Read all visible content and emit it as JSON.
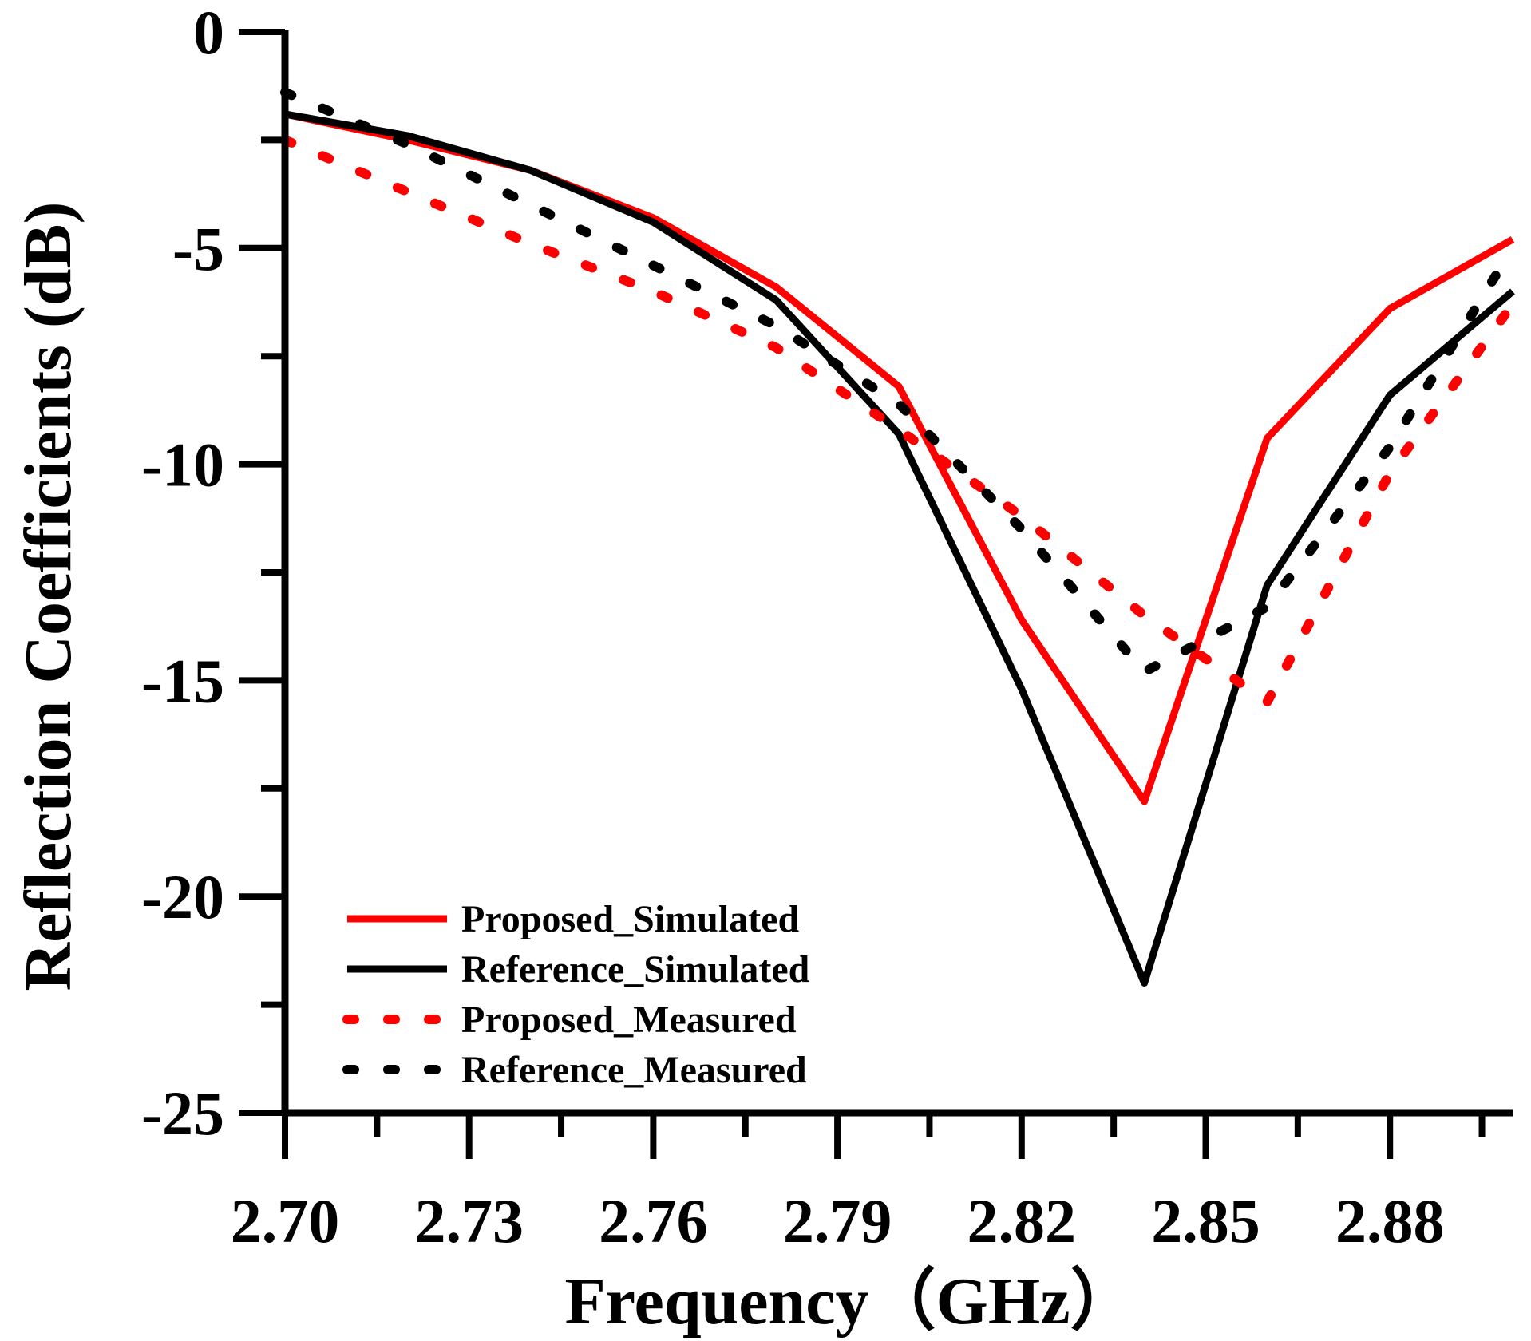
{
  "chart_data": {
    "type": "line",
    "xlabel": "Frequency（GHz）",
    "ylabel": "Reflection Coefficients (dB)",
    "xlim": [
      2.7,
      2.9
    ],
    "ylim": [
      -25,
      0
    ],
    "xticks": [
      2.7,
      2.73,
      2.76,
      2.79,
      2.82,
      2.85,
      2.88
    ],
    "xtick_labels": [
      "2.70",
      "2.73",
      "2.76",
      "2.79",
      "2.82",
      "2.85",
      "2.88"
    ],
    "yticks": [
      0,
      -5,
      -10,
      -15,
      -20,
      -25
    ],
    "ytick_labels": [
      "0",
      "-5",
      "-10",
      "-15",
      "-20",
      "-25"
    ],
    "grid": false,
    "legend_position": "bottom-left",
    "series": [
      {
        "name": "Proposed_Simulated",
        "color": "#ff0000",
        "style": "solid",
        "x": [
          2.7,
          2.72,
          2.74,
          2.76,
          2.78,
          2.8,
          2.82,
          2.84,
          2.86,
          2.88,
          2.9
        ],
        "y": [
          -1.9,
          -2.5,
          -3.2,
          -4.3,
          -5.9,
          -8.2,
          -13.6,
          -17.8,
          -9.4,
          -6.4,
          -4.8
        ]
      },
      {
        "name": "Reference_Simulated",
        "color": "#000000",
        "style": "solid",
        "x": [
          2.7,
          2.72,
          2.74,
          2.76,
          2.78,
          2.8,
          2.82,
          2.84,
          2.86,
          2.88,
          2.9
        ],
        "y": [
          -1.9,
          -2.4,
          -3.2,
          -4.4,
          -6.2,
          -9.3,
          -15.2,
          -22.0,
          -12.8,
          -8.4,
          -6.0
        ]
      },
      {
        "name": "Proposed_Measured",
        "color": "#ff0000",
        "style": "dotted",
        "x": [
          2.7,
          2.72,
          2.74,
          2.76,
          2.78,
          2.8,
          2.82,
          2.84,
          2.86,
          2.88,
          2.9
        ],
        "y": [
          -2.5,
          -3.7,
          -4.9,
          -6.0,
          -7.3,
          -9.2,
          -11.2,
          -13.5,
          -15.5,
          -10.2,
          -6.3
        ]
      },
      {
        "name": "Reference_Measured",
        "color": "#000000",
        "style": "dotted",
        "x": [
          2.7,
          2.72,
          2.74,
          2.76,
          2.78,
          2.8,
          2.82,
          2.84,
          2.86,
          2.88,
          2.9
        ],
        "y": [
          -1.4,
          -2.6,
          -4.0,
          -5.4,
          -6.8,
          -8.6,
          -11.5,
          -14.8,
          -13.3,
          -9.6,
          -5.0
        ]
      }
    ]
  }
}
